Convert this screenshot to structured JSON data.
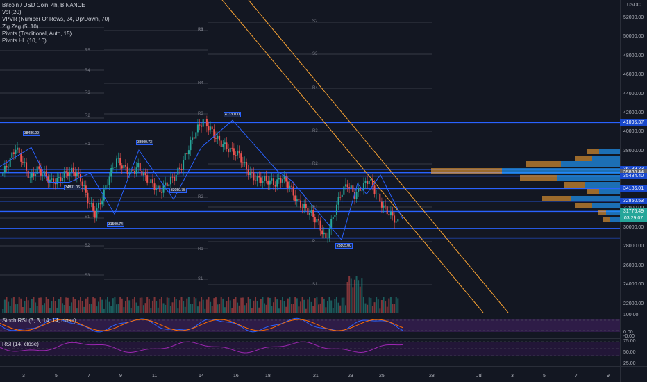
{
  "legend": {
    "title": "Bitcoin / USD Coin, 4h, BINANCE",
    "indicators": [
      "Vol (20)",
      "VPVR (Number Of Rows, 24, Up/Down, 70)",
      "Zig Zag (5, 10)",
      "Pivots (Traditional, Auto, 15)",
      "Pivots HL (10, 10)"
    ]
  },
  "currency": "USDC",
  "colors": {
    "background": "#131722",
    "up": "#26a69a",
    "down": "#ef5350",
    "trendline": "#2962ff",
    "channel": "#f7a233",
    "rsi": "#9c27b0",
    "stoch_k": "#2962ff",
    "stoch_d": "#ff6d00"
  },
  "price_axis": {
    "ticks": [
      "52000.00",
      "50000.00",
      "48000.00",
      "46000.00",
      "44000.00",
      "42000.00",
      "40000.00",
      "38000.00",
      "36000.00",
      "32000.00",
      "30000.00",
      "28000.00",
      "26000.00",
      "24000.00",
      "22000.00"
    ]
  },
  "price_tags": [
    {
      "label": "41095.37",
      "price": 41095.37,
      "color": "#1848cc"
    },
    {
      "label": "36189.23",
      "price": 36189.23,
      "color": "#1848cc"
    },
    {
      "label": "35838.44",
      "price": 35838.44,
      "color": "#5d606b"
    },
    {
      "label": "35484.40",
      "price": 35484.4,
      "color": "#1848cc"
    },
    {
      "label": "34186.01",
      "price": 34186.01,
      "color": "#1848cc"
    },
    {
      "label": "32850.53",
      "price": 32850.53,
      "color": "#1848cc"
    },
    {
      "label": "31776.49",
      "price": 31776.49,
      "color": "#26a69a"
    },
    {
      "label": "03:29:07",
      "price": 31050,
      "color": "#26a69a"
    }
  ],
  "stoch_pane": {
    "label": "Stoch RSI (3, 3, 14, 14, close)",
    "ticks": [
      "100.00",
      "0.00",
      "-0.00"
    ]
  },
  "rsi_pane": {
    "label": "RSI (14, close)",
    "ticks": [
      "75.00",
      "50.00",
      "25.00"
    ]
  },
  "x_axis": {
    "labels": [
      "3",
      "5",
      "7",
      "9",
      "11",
      "14",
      "16",
      "18",
      "21",
      "23",
      "25",
      "28",
      "Jul",
      "3",
      "5",
      "7",
      "9"
    ]
  },
  "pivot_labels": [
    "R3",
    "R5",
    "R4",
    "R3",
    "R2",
    "R1",
    "P",
    "S1",
    "S2",
    "S3",
    "S4",
    "R4",
    "R3",
    "R2",
    "R1",
    "S1",
    "S2",
    "S3",
    "R4",
    "R3",
    "R2",
    "R1",
    "P",
    "S1",
    "S2",
    "S3"
  ],
  "zigzag_labels": [
    "38486.00",
    "34831.06",
    "33050.75",
    "31500.74",
    "41330.00",
    "33900.73",
    "28805.00"
  ],
  "chart_data": {
    "type": "candlestick",
    "title": "Bitcoin / USD Coin, 4h, BINANCE",
    "price_range": [
      21500,
      53000
    ],
    "horizontal_levels": [
      41095.37,
      36189.23,
      35838.44,
      35484.4,
      34186.01,
      32850.53,
      31776.49,
      30000,
      29000
    ],
    "close_path": [
      35500,
      36800,
      38486,
      37000,
      35200,
      36200,
      35600,
      34831,
      35100,
      35800,
      36000,
      35200,
      33050,
      31500,
      33200,
      35500,
      37200,
      36400,
      35800,
      36500,
      35300,
      34600,
      33900,
      34700,
      35400,
      36500,
      38500,
      40200,
      41330,
      40400,
      39300,
      38600,
      38100,
      37700,
      36200,
      35300,
      35100,
      35000,
      34700,
      35300,
      34400,
      32800,
      32200,
      31500,
      30500,
      28805,
      31200,
      33500,
      34700,
      33500,
      34300,
      35200,
      33600,
      32200,
      31400,
      30600
    ],
    "volume": "bars along bottom of price pane",
    "last_price": 31776.49
  }
}
